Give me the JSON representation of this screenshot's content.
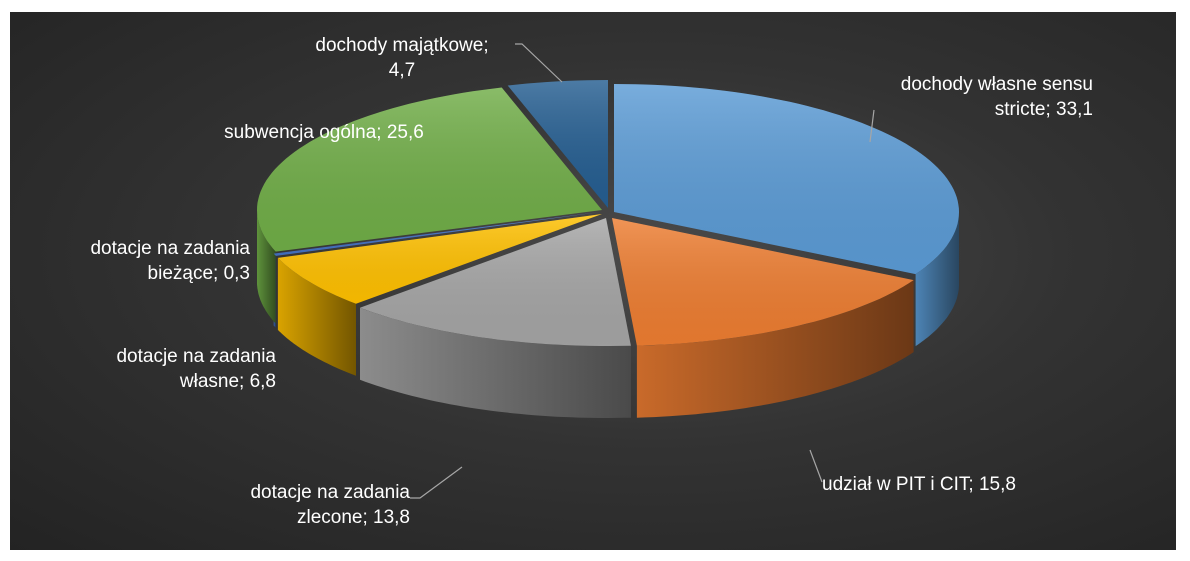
{
  "chart_data": {
    "type": "pie",
    "style": "3d-exploded-ellipse",
    "background": "#333333",
    "label_color": "#ffffff",
    "slices": [
      {
        "label": "dochody własne sensu stricte",
        "value": 33.1,
        "display": "dochody własne sensu stricte; 33,1",
        "color": "#5b9bd5"
      },
      {
        "label": "udział w PIT i CIT",
        "value": 15.8,
        "display": "udział w PIT i CIT; 15,8",
        "color": "#ed7d31"
      },
      {
        "label": "dotacje na zadania zlecone",
        "value": 13.8,
        "display": "dotacje na zadania zlecone; 13,8",
        "color": "#a5a5a5"
      },
      {
        "label": "dotacje na zadania własne",
        "value": 6.8,
        "display": "dotacje na zadania własne; 6,8",
        "color": "#ffc000"
      },
      {
        "label": "dotacje na zadania bieżące",
        "value": 0.3,
        "display": "dotacje na zadania bieżące; 0,3",
        "color": "#4472c4"
      },
      {
        "label": "subwencja ogólna",
        "value": 25.6,
        "display": "subwencja ogólna; 25,6",
        "color": "#70ad47"
      },
      {
        "label": "dochody majątkowe",
        "value": 4.7,
        "display": "dochody majątkowe; 4,7",
        "color": "#255e91"
      }
    ],
    "label_lines": [
      [
        "dochody własne sensu",
        "stricte; 33,1"
      ],
      [
        "udział w PIT i CIT; 15,8"
      ],
      [
        "dotacje na zadania",
        "zlecone; 13,8"
      ],
      [
        "dotacje na zadania",
        "własne; 6,8"
      ],
      [
        "dotacje na zadania",
        "bieżące; 0,3"
      ],
      [
        "subwencja ogólna; 25,6"
      ],
      [
        "dochody majątkowe;",
        "4,7"
      ]
    ]
  }
}
